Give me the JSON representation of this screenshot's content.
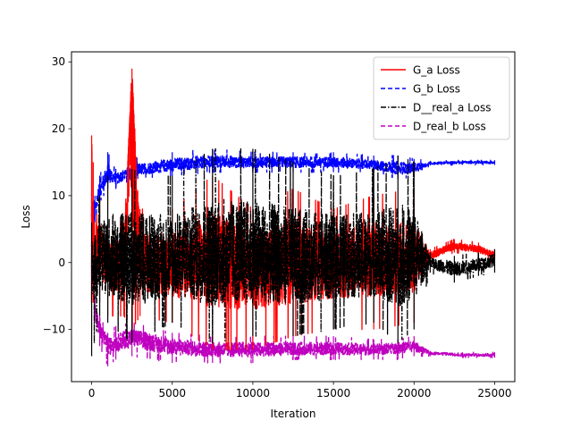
{
  "chart_data": {
    "type": "line",
    "title": "",
    "xlabel": "Iteration",
    "ylabel": "Loss",
    "xlim": [
      -1250,
      26250
    ],
    "ylim": [
      -17.8,
      31.5
    ],
    "xticks": [
      0,
      5000,
      10000,
      15000,
      20000,
      25000
    ],
    "xtick_labels": [
      "0",
      "5000",
      "10000",
      "15000",
      "20000",
      "25000"
    ],
    "yticks": [
      -10,
      0,
      10,
      20,
      30
    ],
    "ytick_labels": [
      "−10",
      "0",
      "10",
      "20",
      "30"
    ],
    "grid": false,
    "legend_position": "top-right",
    "series": [
      {
        "name": "G_a Loss",
        "color": "#ff0000",
        "style": "solid",
        "description": "noisy, centered near 0, spikes to ~29 near iteration 2500; settles ~1-2 after 20000",
        "x": [
          0,
          100,
          500,
          1000,
          2000,
          2500,
          3000,
          5000,
          7500,
          10000,
          12500,
          15000,
          17500,
          20000,
          21000,
          22500,
          24000,
          25000
        ],
        "y": [
          19,
          0,
          2,
          1,
          0,
          29,
          0,
          0,
          1,
          0,
          0,
          0,
          1,
          0,
          1,
          2.5,
          2,
          1
        ],
        "upper": [
          19,
          15,
          10,
          6,
          6,
          29,
          8,
          8,
          13,
          8,
          11,
          8,
          10,
          11,
          2,
          3.5,
          3,
          2
        ],
        "lower": [
          -6,
          -6,
          -6,
          -8,
          -8,
          -10,
          -8,
          -9,
          -13,
          -13,
          -11,
          -10,
          -10,
          -9,
          0,
          1.5,
          1,
          0.5
        ]
      },
      {
        "name": "G_b Loss",
        "color": "#0000ff",
        "style": "dashed",
        "description": "rises to ~15 early, band around 14-16 until 20000, then flat ~15",
        "x": [
          0,
          200,
          500,
          1000,
          1500,
          2500,
          5000,
          7500,
          10000,
          12500,
          15000,
          17500,
          19000,
          20000,
          21000,
          23000,
          25000
        ],
        "y": [
          5,
          8,
          11,
          13,
          12.5,
          13.5,
          14.5,
          15,
          15,
          15,
          15,
          14.5,
          14,
          14,
          14.8,
          15,
          15
        ],
        "upper": [
          15,
          10,
          13,
          16.5,
          14,
          15.5,
          16.5,
          17,
          16.5,
          16.5,
          16.5,
          16,
          16,
          15.5,
          15.2,
          15.3,
          15.3
        ],
        "lower": [
          -1,
          6,
          9,
          11,
          11,
          12.5,
          13,
          13.5,
          13.5,
          13.5,
          13.5,
          13.5,
          12.5,
          12.8,
          14.5,
          14.6,
          14.6
        ]
      },
      {
        "name": "D__real_a Loss",
        "color": "#000000",
        "style": "dashdot",
        "description": "noisy around 0 with large spikes, band narrows after 20000",
        "x": [
          0,
          500,
          1000,
          2500,
          5000,
          7500,
          10000,
          12500,
          15000,
          17500,
          19000,
          20000,
          21000,
          22500,
          24000,
          25000
        ],
        "y": [
          0,
          0,
          0,
          0,
          0,
          0.5,
          0,
          0,
          0,
          0,
          0,
          0,
          0,
          -1,
          -0.5,
          0.5
        ],
        "upper": [
          6,
          10,
          13,
          14,
          13,
          17,
          17,
          15,
          13,
          14,
          16,
          15,
          1.5,
          1,
          1.5,
          2
        ],
        "lower": [
          -14,
          -8,
          -9,
          -12,
          -9,
          -12,
          -11,
          -11,
          -10,
          -9,
          -12,
          -10,
          -1.5,
          -3,
          -2,
          -1.5
        ]
      },
      {
        "name": "D_real_b Loss",
        "color": "#bf00bf",
        "style": "dashed",
        "description": "falls from ~0 to ~-13, band around -12 to -14 until 20000, then flat ~-14",
        "x": [
          0,
          200,
          500,
          1000,
          1500,
          2500,
          5000,
          7500,
          10000,
          12500,
          15000,
          17500,
          19000,
          20000,
          21000,
          23000,
          25000
        ],
        "y": [
          -1,
          -7,
          -10,
          -12,
          -12,
          -11,
          -12.5,
          -13,
          -13,
          -13,
          -13,
          -13,
          -12.5,
          -12.5,
          -13.5,
          -13.8,
          -13.8
        ],
        "upper": [
          1,
          -5,
          -8,
          -10.5,
          -9.5,
          -9,
          -10.5,
          -11,
          -11,
          -11,
          -11,
          -11.5,
          -11.5,
          -11,
          -13.2,
          -13.4,
          -13.4
        ],
        "lower": [
          -2,
          -9,
          -12.5,
          -15.5,
          -14.5,
          -14,
          -15,
          -15,
          -15,
          -14.5,
          -14.5,
          -14.5,
          -14.5,
          -14,
          -14,
          -14.2,
          -14.2
        ]
      }
    ]
  }
}
